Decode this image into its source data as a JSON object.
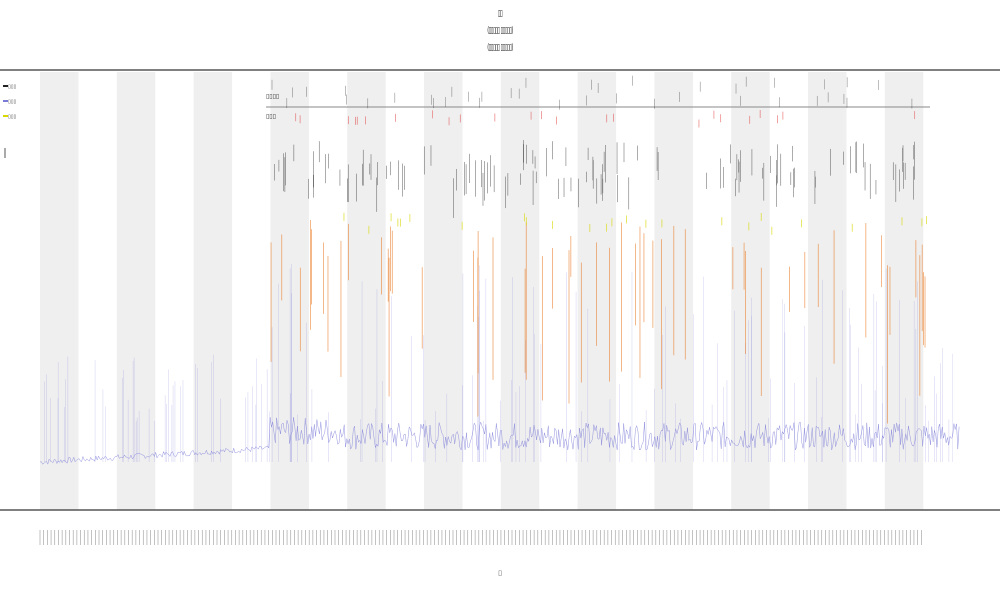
{
  "title": {
    "line1": "▯▯",
    "line2": "(▯▯▯▯▯ ▯▯▯▯▯)",
    "line3": "(▯▯▯▯▯ ▯▯▯▯▯)"
  },
  "colors": {
    "shade_band": "#efefef",
    "baseline_series": "#7a7ad8",
    "spike_orange": "#e8761e",
    "spike_red": "#e03232",
    "spike_yellow": "#d8d800",
    "spike_black": "#222222",
    "axis_line": "#555555"
  },
  "chart_data": {
    "type": "line",
    "title": "▯▯",
    "xlabel": "▯",
    "ylabel": "",
    "x_tick_labels_legible": false,
    "shaded_bands": 12,
    "legend_items": [
      "▯▯▯",
      "▯▯▯",
      "▯▯▯"
    ],
    "row_labels": [
      "▯▯▯▯",
      "▯▯▯"
    ],
    "series": [
      {
        "color": "#7a7ad8",
        "values": []
      },
      {
        "color": "#e8761e",
        "values": []
      },
      {
        "color": "#d8d800",
        "values": []
      },
      {
        "color": "#222222",
        "values": []
      }
    ]
  },
  "axes": {
    "x_tick_count": 240
  }
}
